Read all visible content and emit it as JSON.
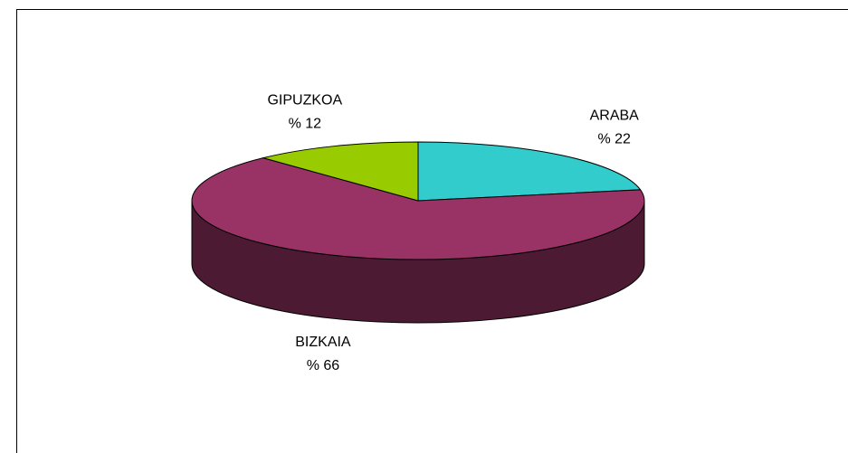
{
  "chart_data": {
    "type": "pie",
    "categories": [
      "ARABA",
      "BIZKAIA",
      "GIPUZKOA"
    ],
    "values": [
      22,
      66,
      12
    ],
    "value_labels": [
      "% 22",
      "% 66",
      "% 12"
    ],
    "colors": [
      "#33cccc",
      "#993366",
      "#99cc00"
    ]
  }
}
